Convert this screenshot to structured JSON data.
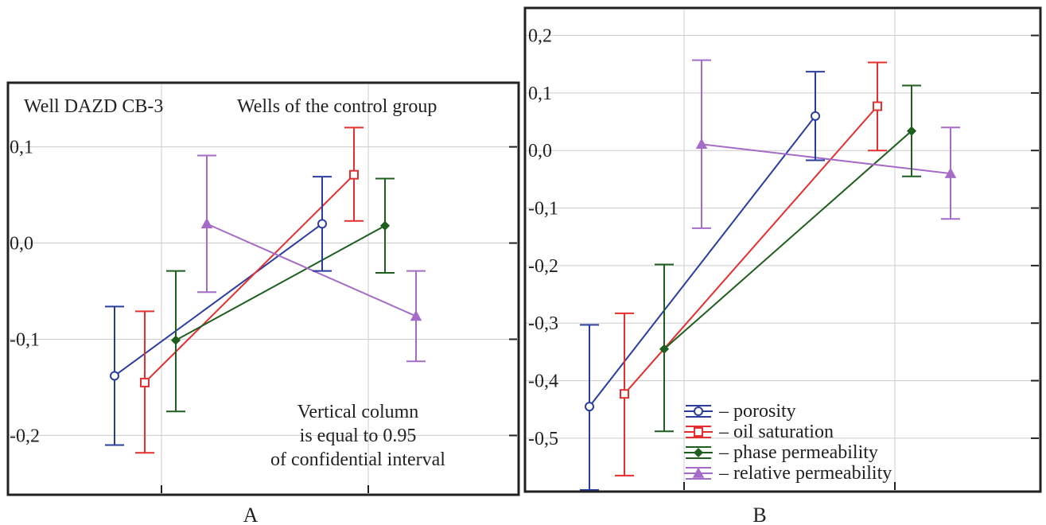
{
  "colors": {
    "porosity": "#2a3d9e",
    "oil_saturation": "#e52e2e",
    "phase_permeability": "#1e5e1e",
    "relative_permeability": "#a46bc7",
    "grid": "#cccccc",
    "frame": "#222222"
  },
  "chart_data": [
    {
      "type": "line",
      "panel_label": "A",
      "annotations": {
        "group_left": "Well DAZD CB-3",
        "group_right": "Wells of the control group",
        "note_line1": "Vertical column",
        "note_line2": "is equal to 0.95",
        "note_line3": "of confidential interval"
      },
      "x_groups": [
        "Well DAZD CB-3",
        "Wells of the control group"
      ],
      "ylim": [
        -0.26,
        0.165
      ],
      "yticks": [
        {
          "value": 0.1,
          "label": "0,1"
        },
        {
          "value": 0.0,
          "label": "0,0"
        },
        {
          "value": -0.1,
          "label": "-0,1"
        },
        {
          "value": -0.2,
          "label": "-0,2"
        }
      ],
      "grid": true,
      "series": [
        {
          "key": "porosity",
          "marker": "circle",
          "points": [
            {
              "mean": -0.138,
              "low": -0.21,
              "high": -0.066
            },
            {
              "mean": 0.02,
              "low": -0.029,
              "high": 0.069
            }
          ]
        },
        {
          "key": "oil_saturation",
          "marker": "square",
          "points": [
            {
              "mean": -0.145,
              "low": -0.218,
              "high": -0.071
            },
            {
              "mean": 0.071,
              "low": 0.023,
              "high": 0.12
            }
          ]
        },
        {
          "key": "phase_permeability",
          "marker": "diamond",
          "points": [
            {
              "mean": -0.101,
              "low": -0.175,
              "high": -0.029
            },
            {
              "mean": 0.018,
              "low": -0.031,
              "high": 0.067
            }
          ]
        },
        {
          "key": "relative_permeability",
          "marker": "triangle",
          "points": [
            {
              "mean": 0.02,
              "low": -0.051,
              "high": 0.091
            },
            {
              "mean": -0.076,
              "low": -0.123,
              "high": -0.029
            }
          ]
        }
      ]
    },
    {
      "type": "line",
      "panel_label": "B",
      "x_groups": [
        "Well DAZD CB-3",
        "Wells of the control group"
      ],
      "ylim": [
        -0.59,
        0.245
      ],
      "yticks": [
        {
          "value": 0.2,
          "label": "0,2"
        },
        {
          "value": 0.1,
          "label": "0,1"
        },
        {
          "value": 0.0,
          "label": "0,0"
        },
        {
          "value": -0.1,
          "label": "-0,1"
        },
        {
          "value": -0.2,
          "label": "-0,2"
        },
        {
          "value": -0.3,
          "label": "-0,3"
        },
        {
          "value": -0.4,
          "label": "-0,4"
        },
        {
          "value": -0.5,
          "label": "-0,5"
        }
      ],
      "grid": true,
      "legend": {
        "placement": "bottom-left",
        "items": [
          {
            "key": "porosity",
            "label": "– porosity"
          },
          {
            "key": "oil_saturation",
            "label": "– oil saturation"
          },
          {
            "key": "phase_permeability",
            "label": "– phase permeability"
          },
          {
            "key": "relative_permeability",
            "label": "– relative permeability"
          }
        ]
      },
      "series": [
        {
          "key": "porosity",
          "marker": "circle",
          "points": [
            {
              "mean": -0.445,
              "low": -0.59,
              "high": -0.303
            },
            {
              "mean": 0.06,
              "low": -0.017,
              "high": 0.137
            }
          ]
        },
        {
          "key": "oil_saturation",
          "marker": "square",
          "points": [
            {
              "mean": -0.423,
              "low": -0.565,
              "high": -0.283
            },
            {
              "mean": 0.077,
              "low": 0.0,
              "high": 0.153
            }
          ]
        },
        {
          "key": "phase_permeability",
          "marker": "diamond",
          "points": [
            {
              "mean": -0.345,
              "low": -0.488,
              "high": -0.198
            },
            {
              "mean": 0.034,
              "low": -0.045,
              "high": 0.113
            }
          ]
        },
        {
          "key": "relative_permeability",
          "marker": "triangle",
          "points": [
            {
              "mean": 0.011,
              "low": -0.135,
              "high": 0.157
            },
            {
              "mean": -0.04,
              "low": -0.119,
              "high": 0.04
            }
          ]
        }
      ]
    }
  ]
}
